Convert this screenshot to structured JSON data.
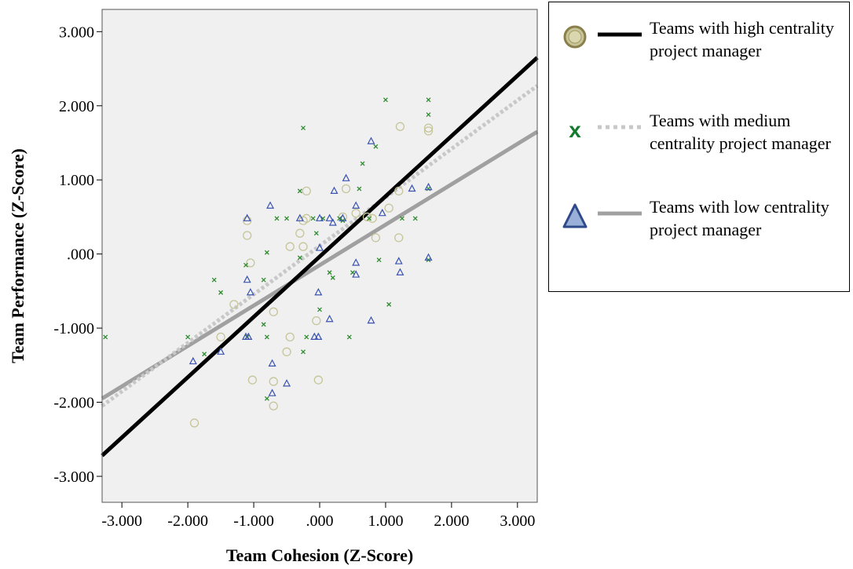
{
  "chart_data": {
    "type": "scatter",
    "xlabel": "Team Cohesion (Z-Score)",
    "ylabel": "Team Performance (Z-Score)",
    "xlim": [
      -3.3,
      3.3
    ],
    "ylim": [
      -3.35,
      3.3
    ],
    "xticks": [
      -3,
      -2,
      -1,
      0,
      1,
      2,
      3
    ],
    "yticks": [
      -3,
      -2,
      -1,
      0,
      1,
      2,
      3
    ],
    "xtick_labels": [
      "-3.000",
      "-2.000",
      "-1.000",
      ".000",
      "1.000",
      "2.000",
      "3.000"
    ],
    "ytick_labels": [
      "-3.000",
      "-2.000",
      "-1.000",
      ".000",
      "1.000",
      "2.000",
      "3.000"
    ],
    "grid": false,
    "background": "#f0f0f0",
    "legend_position": "right",
    "series": [
      {
        "name": "Teams with high centrality project manager",
        "marker": "circle",
        "marker_color": "#c6c59a",
        "line_color": "#000000",
        "line_style": "solid",
        "fit_line": [
          [
            -3.3,
            -2.72
          ],
          [
            3.3,
            2.65
          ]
        ],
        "points": [
          [
            -1.1,
            0.45
          ],
          [
            -1.1,
            0.25
          ],
          [
            -1.05,
            -0.12
          ],
          [
            -1.3,
            -0.68
          ],
          [
            -1.5,
            -1.12
          ],
          [
            -1.02,
            -1.7
          ],
          [
            -0.7,
            -1.72
          ],
          [
            -0.7,
            -2.05
          ],
          [
            -0.5,
            -1.32
          ],
          [
            -0.45,
            -1.12
          ],
          [
            -0.05,
            -0.9
          ],
          [
            -0.02,
            -1.7
          ],
          [
            -1.9,
            -2.28
          ],
          [
            -0.7,
            -0.78
          ],
          [
            -0.45,
            0.1
          ],
          [
            -0.3,
            0.28
          ],
          [
            -0.25,
            0.1
          ],
          [
            -0.2,
            0.85
          ],
          [
            0.35,
            0.5
          ],
          [
            0.4,
            0.88
          ],
          [
            0.55,
            0.55
          ],
          [
            0.72,
            0.5
          ],
          [
            0.8,
            0.48
          ],
          [
            0.85,
            0.22
          ],
          [
            1.05,
            0.62
          ],
          [
            1.2,
            0.85
          ],
          [
            1.2,
            0.22
          ],
          [
            1.22,
            1.72
          ],
          [
            1.65,
            1.7
          ],
          [
            1.65,
            1.66
          ],
          [
            -0.25,
            0.45
          ],
          [
            -0.2,
            0.48
          ]
        ]
      },
      {
        "name": "Teams with medium centrality project manager",
        "marker": "x",
        "marker_color": "#2e8b2e",
        "line_color": "#c8c8c8",
        "line_style": "dotted",
        "fit_line": [
          [
            -3.3,
            -2.05
          ],
          [
            3.3,
            2.27
          ]
        ],
        "points": [
          [
            -3.25,
            -1.12
          ],
          [
            -2.0,
            -1.12
          ],
          [
            -1.75,
            -1.35
          ],
          [
            -1.6,
            -0.35
          ],
          [
            -1.5,
            -0.52
          ],
          [
            -1.12,
            -0.15
          ],
          [
            -1.1,
            -1.12
          ],
          [
            -0.85,
            -0.95
          ],
          [
            -0.85,
            -0.35
          ],
          [
            -0.8,
            -1.12
          ],
          [
            -0.8,
            -1.95
          ],
          [
            -0.8,
            0.02
          ],
          [
            -0.65,
            0.48
          ],
          [
            -0.5,
            0.48
          ],
          [
            -0.3,
            0.85
          ],
          [
            -0.25,
            1.7
          ],
          [
            -0.25,
            -1.32
          ],
          [
            -0.2,
            -1.12
          ],
          [
            -0.1,
            0.48
          ],
          [
            -0.05,
            0.28
          ],
          [
            0.0,
            -0.75
          ],
          [
            0.05,
            0.48
          ],
          [
            0.15,
            -0.25
          ],
          [
            0.2,
            -0.32
          ],
          [
            0.3,
            0.48
          ],
          [
            0.45,
            -1.12
          ],
          [
            0.5,
            -0.25
          ],
          [
            0.6,
            0.88
          ],
          [
            0.65,
            1.22
          ],
          [
            0.75,
            0.48
          ],
          [
            0.85,
            1.45
          ],
          [
            0.9,
            -0.08
          ],
          [
            1.0,
            2.08
          ],
          [
            1.05,
            -0.68
          ],
          [
            1.25,
            0.48
          ],
          [
            1.45,
            0.48
          ],
          [
            1.65,
            2.08
          ],
          [
            1.65,
            1.88
          ],
          [
            1.65,
            0.88
          ],
          [
            1.65,
            -0.08
          ],
          [
            -0.3,
            -0.05
          ],
          [
            0.35,
            0.45
          ]
        ]
      },
      {
        "name": "Teams with low centrality project manager",
        "marker": "triangle",
        "marker_color": "#3a52b0",
        "line_color": "#a0a0a0",
        "line_style": "solid",
        "fit_line": [
          [
            -3.3,
            -1.95
          ],
          [
            3.3,
            1.65
          ]
        ],
        "points": [
          [
            -1.92,
            -1.45
          ],
          [
            -1.5,
            -1.32
          ],
          [
            -1.12,
            -1.12
          ],
          [
            -1.08,
            -1.12
          ],
          [
            -1.1,
            0.48
          ],
          [
            -1.1,
            -0.35
          ],
          [
            -1.05,
            -0.52
          ],
          [
            -0.75,
            0.65
          ],
          [
            -0.72,
            -1.48
          ],
          [
            -0.72,
            -1.88
          ],
          [
            -0.5,
            -1.75
          ],
          [
            -0.3,
            0.48
          ],
          [
            -0.08,
            -1.12
          ],
          [
            -0.02,
            -1.12
          ],
          [
            -0.02,
            -0.52
          ],
          [
            0.0,
            0.08
          ],
          [
            0.15,
            -0.88
          ],
          [
            0.15,
            0.48
          ],
          [
            0.22,
            0.85
          ],
          [
            0.35,
            0.48
          ],
          [
            0.4,
            1.02
          ],
          [
            0.55,
            0.65
          ],
          [
            0.55,
            -0.12
          ],
          [
            0.55,
            -0.28
          ],
          [
            0.78,
            1.52
          ],
          [
            0.78,
            -0.9
          ],
          [
            0.95,
            0.55
          ],
          [
            1.2,
            -0.1
          ],
          [
            1.22,
            -0.25
          ],
          [
            1.4,
            0.88
          ],
          [
            1.65,
            0.9
          ],
          [
            1.65,
            -0.05
          ],
          [
            0.0,
            0.48
          ],
          [
            0.2,
            0.42
          ]
        ]
      }
    ]
  }
}
